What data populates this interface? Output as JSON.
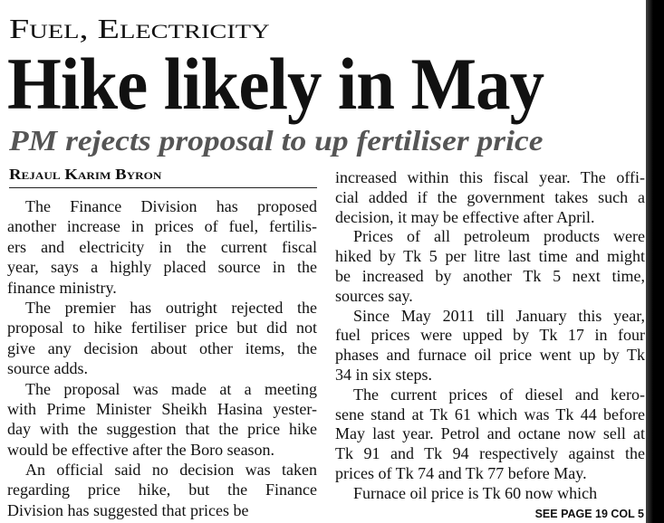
{
  "header": {
    "kicker": "Fuel, Electricity",
    "headline": "Hike likely in May",
    "subheadline": "PM rejects proposal to up fertiliser price"
  },
  "byline": "Rejaul Karim Byron",
  "columns": [
    {
      "paragraphs": [
        {
          "lines": [
            "The Finance Division has proposed",
            "another increase in prices of fuel, fertilis-",
            "ers and electricity in the current fiscal",
            "year, says a highly placed source in the",
            "finance ministry."
          ]
        },
        {
          "lines": [
            "The premier has outright rejected the",
            "proposal to hike fertiliser price but did not",
            "give any decision about other items, the",
            "source adds."
          ]
        },
        {
          "lines": [
            "The proposal was made at a meeting",
            "with Prime Minister Sheikh Hasina yester-",
            "day with the suggestion that the price hike",
            "would be effective after the Boro season."
          ]
        },
        {
          "lines": [
            "An official said no decision was taken",
            "regarding price hike, but the Finance",
            "Division has suggested that prices be"
          ]
        }
      ]
    },
    {
      "paragraphs": [
        {
          "lines": [
            "increased within this fiscal year. The offi-",
            "cial added if the government takes such a",
            "decision, it may be effective after April."
          ]
        },
        {
          "lines": [
            "Prices of all petroleum products were",
            "hiked by Tk 5 per litre last time and might",
            "be increased by another Tk 5 next time,",
            "sources say."
          ]
        },
        {
          "lines": [
            "Since May 2011 till January this year,",
            "fuel prices were upped by Tk 17 in four",
            "phases and furnace oil price went up by Tk",
            "34 in six steps."
          ]
        },
        {
          "lines": [
            "The current prices of diesel and kero-",
            "sene stand at Tk 61 which was Tk 44 before",
            "May last year. Petrol and octane now sell at",
            "Tk 91 and Tk 94 respectively against the",
            "prices of Tk 74 and Tk 77 before May."
          ]
        },
        {
          "lines": [
            "Furnace oil price is Tk 60 now which"
          ]
        }
      ]
    }
  ],
  "jump": "SEE PAGE 19 COL 5"
}
